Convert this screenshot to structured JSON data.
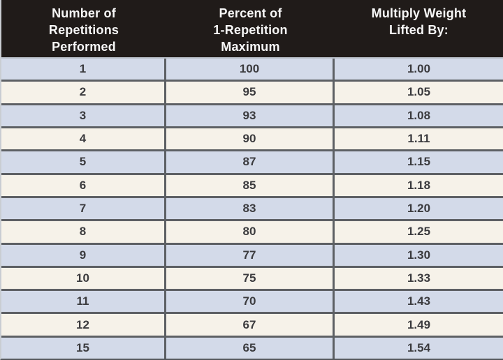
{
  "colors": {
    "header_bg": "#201b19",
    "header_text": "#f7f7f7",
    "row_blue": "#d3dae9",
    "row_cream": "#f6f2e9",
    "border": "#5d6064",
    "cell_text": "#3b3b3e"
  },
  "table": {
    "columns": [
      {
        "label": "Number of\nRepetitions\nPerformed"
      },
      {
        "label": "Percent of\n1-Repetition\nMaximum"
      },
      {
        "label": "Multiply Weight\nLifted By:"
      }
    ],
    "rows": [
      {
        "repetitions": "1",
        "percent_1rm": "100",
        "multiplier": "1.00"
      },
      {
        "repetitions": "2",
        "percent_1rm": "95",
        "multiplier": "1.05"
      },
      {
        "repetitions": "3",
        "percent_1rm": "93",
        "multiplier": "1.08"
      },
      {
        "repetitions": "4",
        "percent_1rm": "90",
        "multiplier": "1.11"
      },
      {
        "repetitions": "5",
        "percent_1rm": "87",
        "multiplier": "1.15"
      },
      {
        "repetitions": "6",
        "percent_1rm": "85",
        "multiplier": "1.18"
      },
      {
        "repetitions": "7",
        "percent_1rm": "83",
        "multiplier": "1.20"
      },
      {
        "repetitions": "8",
        "percent_1rm": "80",
        "multiplier": "1.25"
      },
      {
        "repetitions": "9",
        "percent_1rm": "77",
        "multiplier": "1.30"
      },
      {
        "repetitions": "10",
        "percent_1rm": "75",
        "multiplier": "1.33"
      },
      {
        "repetitions": "11",
        "percent_1rm": "70",
        "multiplier": "1.43"
      },
      {
        "repetitions": "12",
        "percent_1rm": "67",
        "multiplier": "1.49"
      },
      {
        "repetitions": "15",
        "percent_1rm": "65",
        "multiplier": "1.54"
      }
    ]
  }
}
